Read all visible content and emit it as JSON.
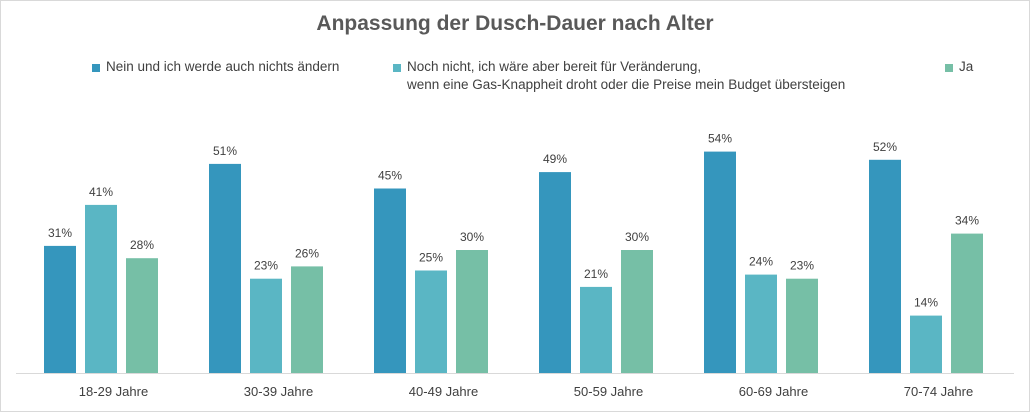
{
  "chart_data": {
    "type": "bar",
    "title": "Anpassung der Dusch-Dauer nach Alter",
    "categories": [
      "18-29 Jahre",
      "30-39 Jahre",
      "40-49 Jahre",
      "50-59 Jahre",
      "60-69 Jahre",
      "70-74 Jahre"
    ],
    "series": [
      {
        "name": "Nein und ich werde auch nichts ändern",
        "color": "#3596bd",
        "values": [
          31,
          51,
          45,
          49,
          54,
          52
        ]
      },
      {
        "name": "Noch nicht, ich wäre aber bereit für Veränderung, wenn eine Gas-Knappheit droht oder die Preise mein Budget übersteigen",
        "name_lines": [
          "Noch nicht, ich wäre aber bereit für Veränderung,",
          "wenn eine Gas-Knappheit droht oder die Preise mein Budget übersteigen"
        ],
        "color": "#5ab6c4",
        "values": [
          41,
          23,
          25,
          21,
          24,
          14
        ]
      },
      {
        "name": "Ja",
        "color": "#76bfa6",
        "values": [
          28,
          26,
          30,
          30,
          23,
          34
        ]
      }
    ],
    "value_suffix": "%",
    "ylim": [
      0,
      60
    ],
    "grid": false,
    "legend_position": "top"
  }
}
